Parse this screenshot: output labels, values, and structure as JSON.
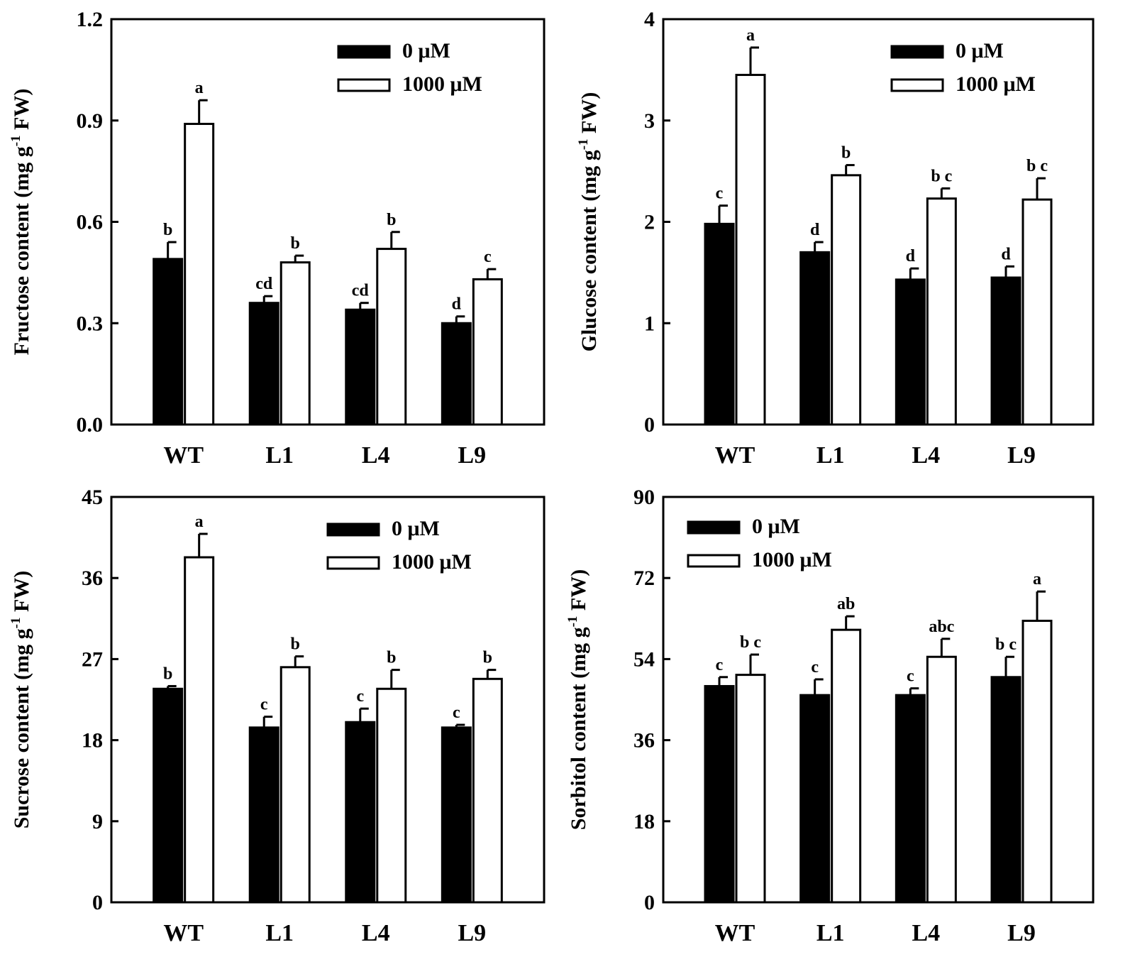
{
  "chart_data": [
    {
      "type": "bar",
      "categories": [
        "WT",
        "L1",
        "L4",
        "L9"
      ],
      "series": [
        {
          "name": "0 μM",
          "color": "#000000",
          "values": [
            0.49,
            0.36,
            0.34,
            0.3
          ],
          "errors": [
            0.05,
            0.02,
            0.02,
            0.02
          ],
          "letters": [
            "b",
            "cd",
            "cd",
            "d"
          ]
        },
        {
          "name": "1000 μM",
          "color": "#ffffff",
          "values": [
            0.89,
            0.48,
            0.52,
            0.43
          ],
          "errors": [
            0.07,
            0.02,
            0.05,
            0.03
          ],
          "letters": [
            "a",
            "b",
            "b",
            "c"
          ]
        }
      ],
      "ylabel": {
        "main": "Fructose content (mg g",
        "sup": "-1",
        "tail": " FW)"
      },
      "ylim": [
        0,
        1.2
      ],
      "yticks": [
        "0.0",
        "0.3",
        "0.6",
        "0.9",
        "1.2"
      ],
      "tick_values": [
        0,
        0.3,
        0.6,
        0.9,
        1.2
      ],
      "legend_position": "top-right"
    },
    {
      "type": "bar",
      "categories": [
        "WT",
        "L1",
        "L4",
        "L9"
      ],
      "series": [
        {
          "name": "0 μM",
          "color": "#000000",
          "values": [
            1.98,
            1.7,
            1.43,
            1.45
          ],
          "errors": [
            0.18,
            0.1,
            0.11,
            0.11
          ],
          "letters": [
            "c",
            "d",
            "d",
            "d"
          ]
        },
        {
          "name": "1000 μM",
          "color": "#ffffff",
          "values": [
            3.45,
            2.46,
            2.23,
            2.22
          ],
          "errors": [
            0.27,
            0.1,
            0.1,
            0.21
          ],
          "letters": [
            "a",
            "b",
            "b c",
            "b c"
          ]
        }
      ],
      "ylabel": {
        "main": "Glucose content (mg g",
        "sup": "-1",
        "tail": " FW)"
      },
      "ylim": [
        0,
        4
      ],
      "yticks": [
        "0",
        "1",
        "2",
        "3",
        "4"
      ],
      "tick_values": [
        0,
        1,
        2,
        3,
        4
      ],
      "legend_position": "top-right"
    },
    {
      "type": "bar",
      "categories": [
        "WT",
        "L1",
        "L4",
        "L9"
      ],
      "series": [
        {
          "name": "0 μM",
          "color": "#000000",
          "values": [
            23.7,
            19.4,
            20.0,
            19.4
          ],
          "errors": [
            0.3,
            1.2,
            1.5,
            0.3
          ],
          "letters": [
            "b",
            "c",
            "c",
            "c"
          ]
        },
        {
          "name": "1000 μM",
          "color": "#ffffff",
          "values": [
            38.3,
            26.1,
            23.7,
            24.8
          ],
          "errors": [
            2.6,
            1.2,
            2.1,
            1.0
          ],
          "letters": [
            "a",
            "b",
            "b",
            "b"
          ]
        }
      ],
      "ylabel": {
        "main": "Sucrose content (mg g",
        "sup": "-1",
        "tail": " FW)"
      },
      "ylim": [
        0,
        45
      ],
      "yticks": [
        "0",
        "9",
        "18",
        "27",
        "36",
        "45"
      ],
      "tick_values": [
        0,
        9,
        18,
        27,
        36,
        45
      ],
      "legend_position": "top-right"
    },
    {
      "type": "bar",
      "categories": [
        "WT",
        "L1",
        "L4",
        "L9"
      ],
      "series": [
        {
          "name": "0 μM",
          "color": "#000000",
          "values": [
            48.0,
            46.0,
            46.0,
            50.0
          ],
          "errors": [
            2.0,
            3.5,
            1.5,
            4.5
          ],
          "letters": [
            "c",
            "c",
            "c",
            "b c"
          ]
        },
        {
          "name": "1000 μM",
          "color": "#ffffff",
          "values": [
            50.5,
            60.5,
            54.5,
            62.5
          ],
          "errors": [
            4.5,
            3.0,
            4.0,
            6.5
          ],
          "letters": [
            "b c",
            "ab",
            "abc",
            "a"
          ]
        }
      ],
      "ylabel": {
        "main": "Sorbitol content (mg g",
        "sup": "-1",
        "tail": " FW)"
      },
      "ylim": [
        0,
        90
      ],
      "yticks": [
        "0",
        "18",
        "36",
        "54",
        "72",
        "90"
      ],
      "tick_values": [
        0,
        18,
        36,
        54,
        72,
        90
      ],
      "legend_position": "top-left"
    }
  ]
}
